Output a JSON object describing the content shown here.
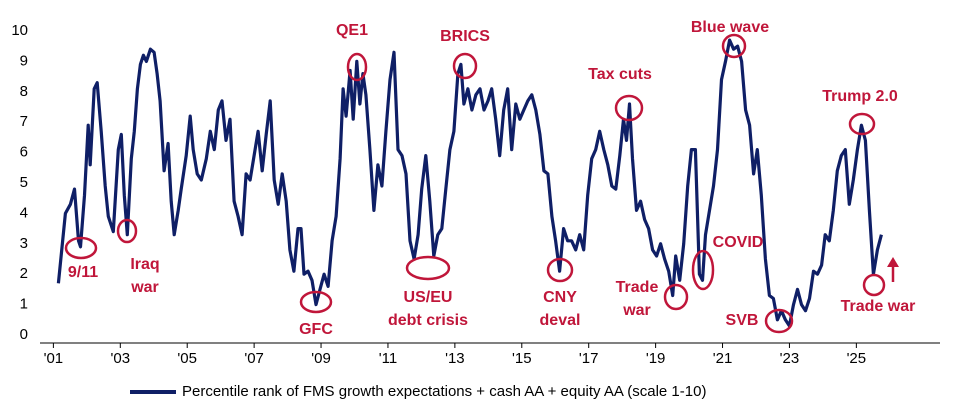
{
  "chart_data": {
    "type": "line",
    "xlim": [
      2000.6,
      2027.5
    ],
    "xticks": [
      {
        "value": 2001,
        "label": "'01"
      },
      {
        "value": 2003,
        "label": "'03"
      },
      {
        "value": 2005,
        "label": "'05"
      },
      {
        "value": 2007,
        "label": "'07"
      },
      {
        "value": 2009,
        "label": "'09"
      },
      {
        "value": 2011,
        "label": "'11"
      },
      {
        "value": 2013,
        "label": "'13"
      },
      {
        "value": 2015,
        "label": "'15"
      },
      {
        "value": 2017,
        "label": "'17"
      },
      {
        "value": 2019,
        "label": "'19"
      },
      {
        "value": 2021,
        "label": "'21"
      },
      {
        "value": 2023,
        "label": "'23"
      },
      {
        "value": 2025,
        "label": "'25"
      }
    ],
    "ylim": [
      0,
      10
    ],
    "yticks": [
      0,
      1,
      2,
      3,
      4,
      5,
      6,
      7,
      8,
      9,
      10
    ],
    "grid": false,
    "legend": "bottom",
    "x": [
      2001.15,
      2001.36,
      2001.51,
      2001.63,
      2001.75,
      2001.81,
      2001.93,
      2002.04,
      2002.1,
      2002.22,
      2002.31,
      2002.43,
      2002.55,
      2002.64,
      2002.79,
      2002.94,
      2003.03,
      2003.12,
      2003.21,
      2003.33,
      2003.42,
      2003.51,
      2003.6,
      2003.69,
      2003.78,
      2003.9,
      2004.01,
      2004.1,
      2004.19,
      2004.31,
      2004.43,
      2004.52,
      2004.61,
      2004.73,
      2004.82,
      2004.97,
      2005.09,
      2005.18,
      2005.3,
      2005.42,
      2005.57,
      2005.69,
      2005.81,
      2005.93,
      2006.04,
      2006.16,
      2006.28,
      2006.4,
      2006.52,
      2006.64,
      2006.76,
      2006.88,
      2007.0,
      2007.12,
      2007.24,
      2007.36,
      2007.48,
      2007.6,
      2007.72,
      2007.84,
      2007.96,
      2008.07,
      2008.19,
      2008.31,
      2008.4,
      2008.49,
      2008.61,
      2008.73,
      2008.85,
      2008.97,
      2009.09,
      2009.21,
      2009.33,
      2009.45,
      2009.57,
      2009.66,
      2009.75,
      2009.87,
      2009.96,
      2010.07,
      2010.16,
      2010.25,
      2010.34,
      2010.46,
      2010.58,
      2010.7,
      2010.82,
      2010.94,
      2011.06,
      2011.18,
      2011.3,
      2011.42,
      2011.54,
      2011.66,
      2011.78,
      2011.9,
      2012.01,
      2012.13,
      2012.25,
      2012.37,
      2012.49,
      2012.61,
      2012.73,
      2012.85,
      2012.97,
      2013.09,
      2013.18,
      2013.27,
      2013.39,
      2013.51,
      2013.63,
      2013.75,
      2013.87,
      2013.99,
      2014.1,
      2014.22,
      2014.34,
      2014.46,
      2014.58,
      2014.7,
      2014.82,
      2014.94,
      2015.06,
      2015.18,
      2015.3,
      2015.42,
      2015.54,
      2015.66,
      2015.78,
      2015.9,
      2016.01,
      2016.13,
      2016.25,
      2016.37,
      2016.49,
      2016.61,
      2016.73,
      2016.85,
      2016.97,
      2017.09,
      2017.21,
      2017.33,
      2017.45,
      2017.57,
      2017.69,
      2017.81,
      2017.93,
      2018.04,
      2018.13,
      2018.22,
      2018.31,
      2018.43,
      2018.55,
      2018.67,
      2018.79,
      2018.91,
      2019.03,
      2019.15,
      2019.27,
      2019.39,
      2019.51,
      2019.6,
      2019.72,
      2019.84,
      2019.96,
      2020.07,
      2020.19,
      2020.31,
      2020.4,
      2020.49,
      2020.61,
      2020.73,
      2020.85,
      2020.97,
      2021.09,
      2021.21,
      2021.33,
      2021.45,
      2021.57,
      2021.69,
      2021.81,
      2021.93,
      2022.04,
      2022.16,
      2022.28,
      2022.4,
      2022.52,
      2022.64,
      2022.76,
      2022.88,
      2023.0,
      2023.12,
      2023.24,
      2023.36,
      2023.48,
      2023.6,
      2023.72,
      2023.84,
      2023.96,
      2024.07,
      2024.19,
      2024.31,
      2024.43,
      2024.55,
      2024.67,
      2024.79,
      2024.91,
      2025.03,
      2025.15,
      2025.27,
      2025.39,
      2025.51,
      2025.63,
      2025.75
    ],
    "series": [
      {
        "name": "Percentile rank of FMS growth expectations + cash AA + equity AA (scale 1-10)",
        "color": "#0f1f66",
        "values": [
          1.7,
          4.0,
          4.3,
          4.8,
          3.1,
          2.9,
          4.6,
          6.9,
          5.6,
          8.1,
          8.3,
          6.7,
          4.9,
          3.9,
          3.4,
          6.1,
          6.6,
          4.6,
          3.3,
          5.8,
          6.7,
          8.1,
          8.9,
          9.2,
          9.0,
          9.4,
          9.3,
          8.6,
          7.7,
          5.4,
          6.3,
          4.4,
          3.3,
          4.1,
          4.8,
          5.9,
          7.2,
          6.1,
          5.3,
          5.1,
          5.8,
          6.7,
          6.1,
          7.4,
          7.7,
          6.4,
          7.1,
          4.4,
          3.9,
          3.3,
          5.3,
          5.1,
          5.9,
          6.7,
          5.4,
          6.6,
          7.7,
          5.1,
          4.3,
          5.3,
          4.4,
          2.8,
          2.1,
          3.5,
          3.5,
          2.0,
          2.1,
          1.8,
          1.0,
          1.5,
          2.0,
          1.6,
          3.1,
          3.9,
          5.8,
          8.1,
          7.2,
          8.7,
          7.1,
          9.0,
          7.6,
          8.6,
          7.9,
          6.1,
          4.1,
          5.6,
          4.9,
          6.7,
          8.4,
          9.3,
          6.1,
          5.9,
          5.3,
          3.1,
          2.5,
          3.3,
          4.8,
          5.9,
          4.4,
          2.6,
          3.3,
          3.5,
          4.8,
          6.1,
          6.7,
          8.6,
          8.9,
          7.6,
          8.1,
          7.4,
          7.9,
          8.1,
          7.4,
          7.7,
          8.1,
          7.1,
          5.9,
          7.4,
          8.1,
          6.1,
          7.6,
          7.1,
          7.4,
          7.7,
          7.9,
          7.4,
          6.6,
          5.4,
          5.3,
          3.9,
          3.1,
          2.1,
          3.5,
          3.1,
          3.1,
          2.8,
          3.3,
          2.8,
          4.6,
          5.8,
          6.1,
          6.7,
          6.1,
          5.6,
          4.9,
          4.8,
          5.9,
          7.1,
          6.4,
          7.6,
          5.8,
          4.1,
          4.4,
          3.8,
          3.5,
          2.8,
          2.6,
          3.0,
          2.5,
          2.1,
          1.3,
          2.6,
          1.8,
          3.0,
          4.9,
          6.1,
          6.1,
          2.0,
          1.8,
          3.3,
          4.1,
          4.9,
          6.1,
          8.4,
          9.0,
          9.7,
          9.4,
          9.5,
          9.0,
          7.4,
          6.9,
          5.3,
          6.1,
          4.6,
          2.5,
          1.3,
          1.2,
          0.5,
          0.8,
          0.5,
          0.3,
          1.0,
          1.5,
          1.0,
          0.8,
          1.2,
          2.1,
          2.0,
          2.3,
          3.3,
          3.1,
          4.1,
          5.4,
          5.9,
          6.1,
          4.3,
          5.1,
          6.1,
          6.9,
          6.4,
          4.1,
          2.0,
          2.8,
          3.3
        ]
      }
    ],
    "annotation_color": "#c0163a",
    "annotations": [
      {
        "text": "9/11"
      },
      {
        "lines": [
          "Iraq",
          "war"
        ]
      },
      {
        "text": "GFC"
      },
      {
        "text": "QE1"
      },
      {
        "lines": [
          "US/EU",
          "debt crisis"
        ]
      },
      {
        "text": "BRICS"
      },
      {
        "lines": [
          "CNY",
          "deval"
        ]
      },
      {
        "text": "Tax cuts"
      },
      {
        "lines": [
          "Trade",
          "war"
        ]
      },
      {
        "text": "COVID"
      },
      {
        "text": "Blue wave"
      },
      {
        "text": "SVB"
      },
      {
        "text": "Trump 2.0"
      },
      {
        "text": "Trade war"
      }
    ]
  }
}
